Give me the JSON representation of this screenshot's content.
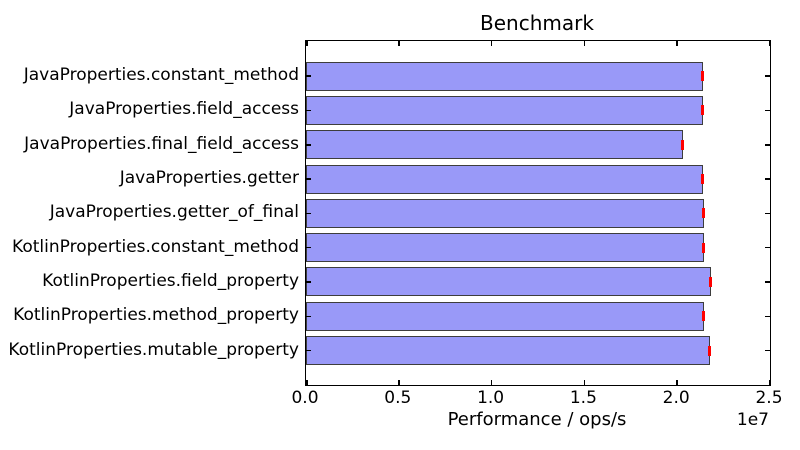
{
  "figure": {
    "background": "#ffffff"
  },
  "chart_data": {
    "type": "bar",
    "orientation": "horizontal",
    "title": "Benchmark",
    "xlabel": "Performance / ops/s",
    "x_offset_label": "1e7",
    "xlim": [
      0,
      25000000
    ],
    "xticks": [
      0,
      5000000,
      10000000,
      15000000,
      20000000,
      25000000
    ],
    "xticklabels": [
      "0.0",
      "0.5",
      "1.0",
      "1.5",
      "2.0",
      "2.5"
    ],
    "grid": false,
    "legend": null,
    "categories": [
      "JavaProperties.constant_method",
      "JavaProperties.field_access",
      "JavaProperties.final_field_access",
      "JavaProperties.getter",
      "JavaProperties.getter_of_final",
      "KotlinProperties.constant_method",
      "KotlinProperties.field_property",
      "KotlinProperties.method_property",
      "KotlinProperties.mutable_property"
    ],
    "values": [
      21380000,
      21410000,
      20320000,
      21410000,
      21430000,
      21430000,
      21810000,
      21430000,
      21770000
    ],
    "xerr": [
      150000,
      150000,
      150000,
      150000,
      150000,
      150000,
      150000,
      150000,
      150000
    ],
    "colors": {
      "bar_fill": "#9999f8",
      "bar_edge": "#3d3d3d",
      "error_bar": "#ff0000",
      "axis": "#000000",
      "text": "#000000"
    }
  }
}
